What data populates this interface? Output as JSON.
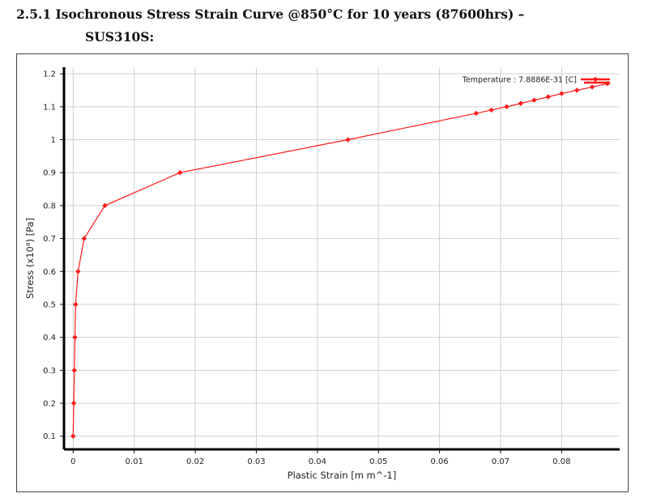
{
  "heading": {
    "line1": "2.5.1 Isochronous Stress Strain Curve @850°C for 10 years (87600hrs) –",
    "line2": "SUS310S:"
  },
  "chart_data": {
    "type": "line",
    "xlabel": "Plastic Strain  [m m^-1]",
    "ylabel": "Stress  (x10⁸)  [Pa]",
    "xlim": [
      -0.0015,
      0.0895
    ],
    "ylim": [
      0.06,
      1.22
    ],
    "grid": true,
    "legend_position": "top-right",
    "x_ticks": [
      {
        "value": 0,
        "label": "0"
      },
      {
        "value": 0.01,
        "label": "0.01"
      },
      {
        "value": 0.02,
        "label": "0.02"
      },
      {
        "value": 0.03,
        "label": "0.03"
      },
      {
        "value": 0.04,
        "label": "0.04"
      },
      {
        "value": 0.05,
        "label": "0.05"
      },
      {
        "value": 0.06,
        "label": "0.06"
      },
      {
        "value": 0.07,
        "label": "0.07"
      },
      {
        "value": 0.08,
        "label": "0.08"
      }
    ],
    "y_ticks": [
      {
        "value": 0.1,
        "label": "0.1"
      },
      {
        "value": 0.2,
        "label": "0.2"
      },
      {
        "value": 0.3,
        "label": "0.3"
      },
      {
        "value": 0.4,
        "label": "0.4"
      },
      {
        "value": 0.5,
        "label": "0.5"
      },
      {
        "value": 0.6,
        "label": "0.6"
      },
      {
        "value": 0.7,
        "label": "0.7"
      },
      {
        "value": 0.8,
        "label": "0.8"
      },
      {
        "value": 0.9,
        "label": "0.9"
      },
      {
        "value": 1.0,
        "label": "1"
      },
      {
        "value": 1.1,
        "label": "1.1"
      },
      {
        "value": 1.2,
        "label": "1.2"
      }
    ],
    "series": [
      {
        "name": "Temperature : 7.8886E-31 [C]",
        "color": "#ff1a1a",
        "x": [
          0.0,
          0.0001,
          0.0002,
          0.0003,
          0.0004,
          0.0008,
          0.0018,
          0.0052,
          0.0175,
          0.045,
          0.066,
          0.0685,
          0.071,
          0.0733,
          0.0755,
          0.0778,
          0.08,
          0.0825,
          0.085,
          0.0875
        ],
        "y": [
          0.1,
          0.2,
          0.3,
          0.4,
          0.5,
          0.6,
          0.7,
          0.8,
          0.9,
          1.0,
          1.08,
          1.09,
          1.1,
          1.11,
          1.12,
          1.13,
          1.14,
          1.15,
          1.16,
          1.17
        ]
      }
    ]
  }
}
